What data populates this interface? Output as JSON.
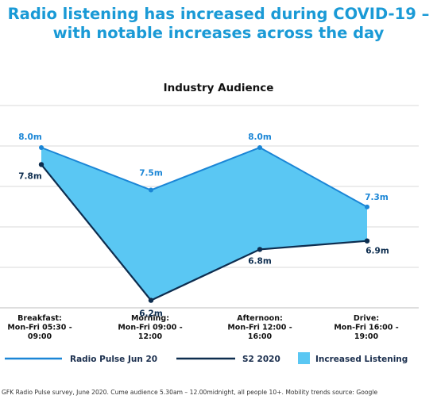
{
  "title": {
    "line1": "Radio listening has increased during COVID-19 –",
    "line2": "with notable increases across the day"
  },
  "chart_data": {
    "type": "area",
    "title": "Industry Audience",
    "categories": [
      [
        "Breakfast:",
        "Mon-Fri 05:30 -",
        "09:00"
      ],
      [
        "Morning:",
        "Mon-Fri 09:00 -",
        "12:00"
      ],
      [
        "Afternoon:",
        "Mon-Fri 12:00 -",
        "16:00"
      ],
      [
        "Drive:",
        "Mon-Fri 16:00 -",
        "19:00"
      ]
    ],
    "series": [
      {
        "name": "Radio Pulse Jun 20",
        "values": [
          8.0,
          7.5,
          8.0,
          7.3
        ],
        "labels": [
          "8.0m",
          "7.5m",
          "8.0m",
          "7.3m"
        ],
        "color": "#1b86d6"
      },
      {
        "name": "S2 2020",
        "values": [
          7.8,
          6.2,
          6.8,
          6.9
        ],
        "labels": [
          "7.8m",
          "6.2m",
          "6.8m",
          "6.9m"
        ],
        "color": "#0d2d4f"
      }
    ],
    "area": {
      "name": "Increased Listening",
      "color": "#5ac7f3"
    },
    "ylim": [
      6.0,
      8.6
    ],
    "grid": true,
    "legend": "bottom"
  },
  "footnote": "GFK Radio Pulse survey, June 2020. Cume audience 5.30am – 12.00midnight, all people 10+.   Mobility trends source: Google"
}
